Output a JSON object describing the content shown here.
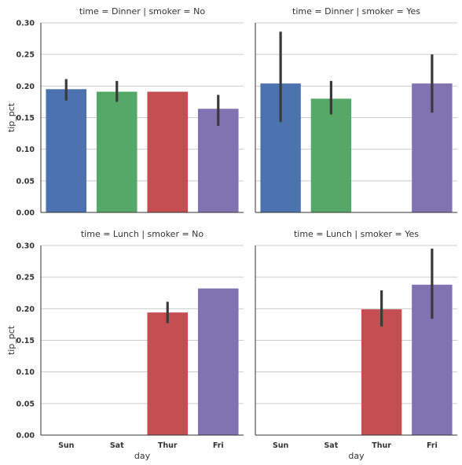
{
  "chart_data": {
    "type": "bar",
    "categories": [
      "Sun",
      "Sat",
      "Thur",
      "Fri"
    ],
    "xlabel": "day",
    "ylabel": "tip_pct",
    "ylim": [
      0,
      0.3
    ],
    "yticks": [
      "0.00",
      "0.05",
      "0.10",
      "0.15",
      "0.20",
      "0.25",
      "0.30"
    ],
    "grid": "horizontal",
    "colors": [
      "#4c72b0",
      "#55a868",
      "#c44e52",
      "#8172b2"
    ],
    "errorbar_color": "#3a3a3a",
    "panels": [
      {
        "title": "time = Dinner | smoker = No",
        "values": [
          0.195,
          0.191,
          0.191,
          0.164
        ],
        "err_low": [
          0.177,
          0.175,
          null,
          0.137
        ],
        "err_high": [
          0.211,
          0.208,
          null,
          0.186
        ]
      },
      {
        "title": "time = Dinner | smoker = Yes",
        "values": [
          0.204,
          0.18,
          null,
          0.204
        ],
        "err_low": [
          0.143,
          0.155,
          null,
          0.158
        ],
        "err_high": [
          0.286,
          0.208,
          null,
          0.25
        ]
      },
      {
        "title": "time = Lunch | smoker = No",
        "values": [
          null,
          null,
          0.194,
          0.232
        ],
        "err_low": [
          null,
          null,
          0.177,
          null
        ],
        "err_high": [
          null,
          null,
          0.211,
          null
        ]
      },
      {
        "title": "time = Lunch | smoker = Yes",
        "values": [
          null,
          null,
          0.199,
          0.238
        ],
        "err_low": [
          null,
          null,
          0.172,
          0.184
        ],
        "err_high": [
          null,
          null,
          0.229,
          0.295
        ]
      }
    ]
  }
}
